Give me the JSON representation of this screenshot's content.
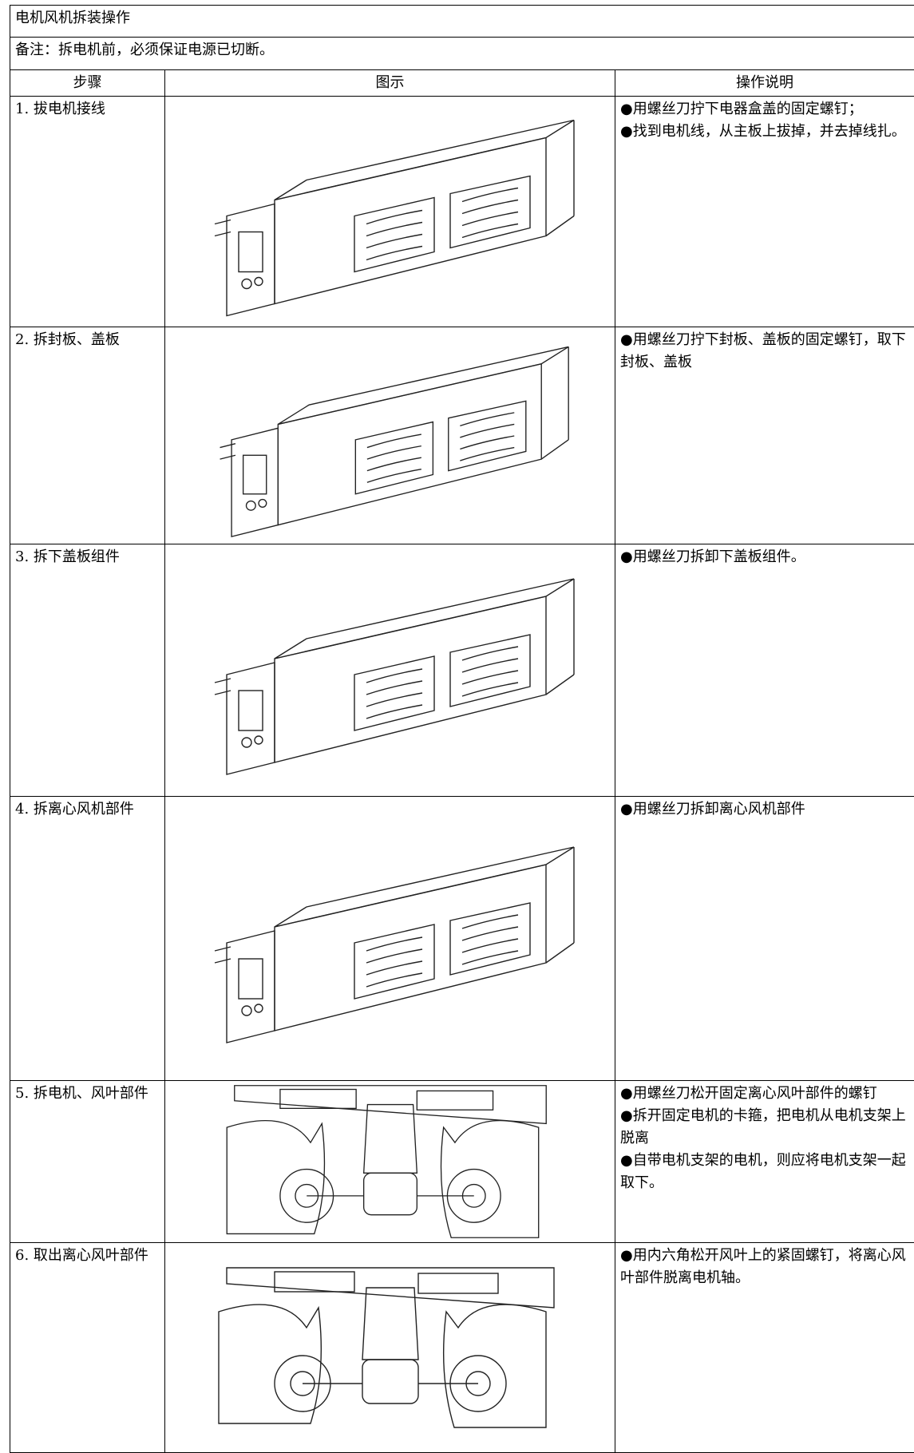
{
  "title": "电机风机拆装操作",
  "note": "备注：拆电机前，必须保证电源已切断。",
  "table": {
    "header": [
      "步骤",
      "图示",
      "操作说明"
    ],
    "rows": [
      {
        "step": "1. 拔电机接线",
        "notes": [
          "●用螺丝刀拧下电器盒盖的固定螺钉；",
          "●找到电机线，从主板上拔掉，并去掉线扎。"
        ]
      },
      {
        "step": "2. 拆封板、盖板",
        "notes": [
          "●用螺丝刀拧下封板、盖板的固定螺钉，取下封板、盖板"
        ]
      },
      {
        "step": "3. 拆下盖板组件",
        "notes": [
          "●用螺丝刀拆卸下盖板组件。"
        ]
      },
      {
        "step": "4. 拆离心风机部件",
        "notes": [
          "●用螺丝刀拆卸离心风机部件"
        ]
      },
      {
        "step": "5. 拆电机、风叶部件",
        "notes": [
          "●用螺丝刀松开固定离心风叶部件的螺钉",
          "●拆开固定电机的卡箍，把电机从电机支架上脱离",
          "●自带电机支架的电机，则应将电机支架一起取下。"
        ]
      },
      {
        "step": "6. 取出离心风叶部件",
        "notes": [
          "●用内六角松开风叶上的紧固螺钉，将离心风叶部件脱离电机轴。"
        ]
      }
    ]
  }
}
